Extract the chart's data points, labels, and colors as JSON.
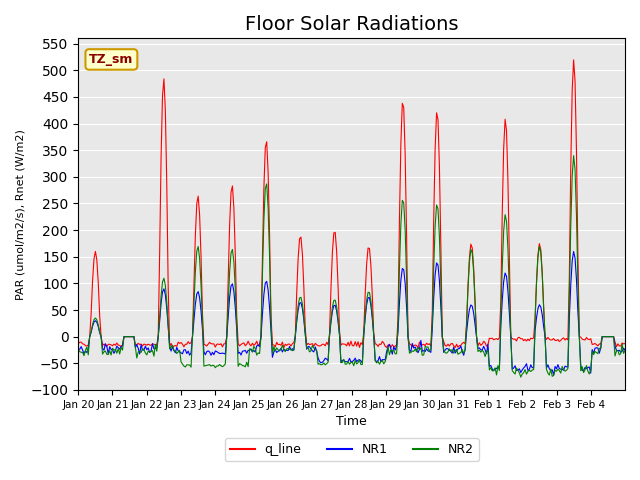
{
  "title": "Floor Solar Radiations",
  "xlabel": "Time",
  "ylabel": "PAR (umol/m2/s), Rnet (W/m2)",
  "ylim": [
    -100,
    560
  ],
  "yticks": [
    -100,
    -50,
    0,
    50,
    100,
    150,
    200,
    250,
    300,
    350,
    400,
    450,
    500,
    550
  ],
  "xtick_labels": [
    "Jan 20",
    "Jan 21",
    "Jan 22",
    "Jan 23",
    "Jan 24",
    "Jan 25",
    "Jan 26",
    "Jan 27",
    "Jan 28",
    "Jan 29",
    "Jan 30",
    "Jan 31",
    "Feb 1",
    "Feb 2",
    "Feb 3",
    "Feb 4"
  ],
  "annotation_text": "TZ_sm",
  "annotation_bg": "#ffffcc",
  "annotation_border": "#cc9900",
  "legend_labels": [
    "q_line",
    "NR1",
    "NR2"
  ],
  "legend_colors": [
    "red",
    "blue",
    "green"
  ],
  "line_colors": [
    "red",
    "blue",
    "green"
  ],
  "background_color": "#e8e8e8",
  "title_fontsize": 14
}
